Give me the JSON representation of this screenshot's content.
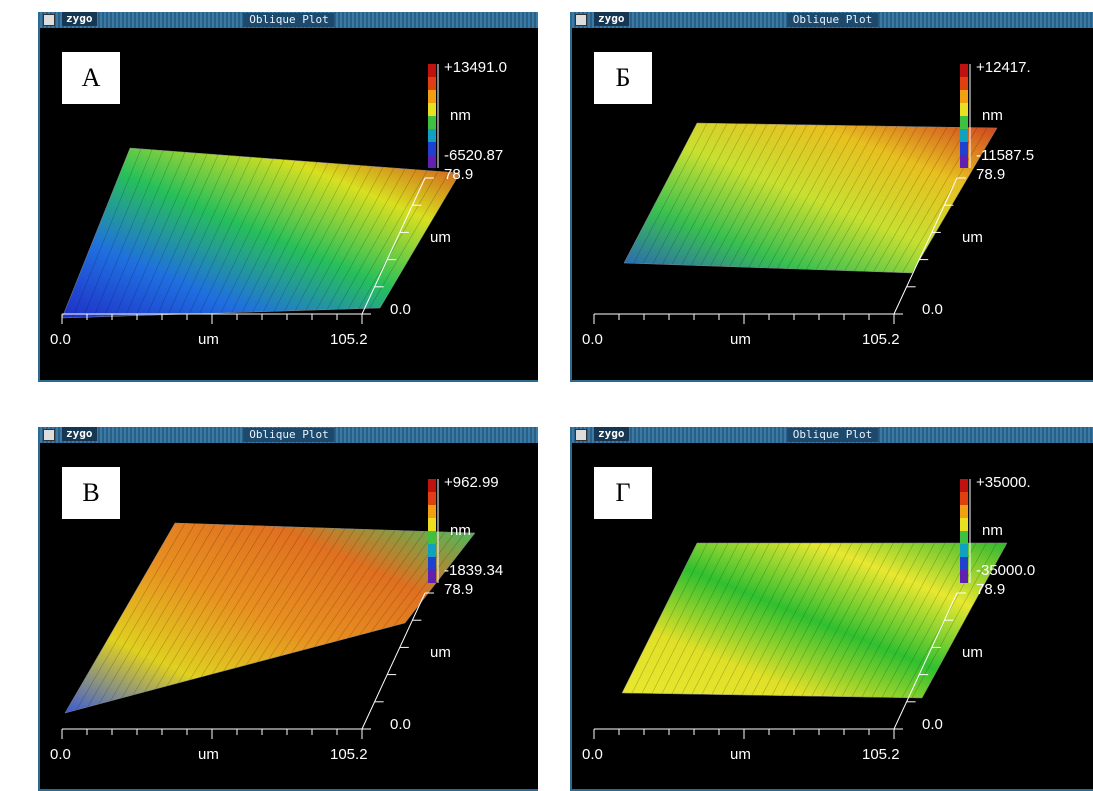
{
  "panels": [
    {
      "window_title": "Oblique Plot",
      "logo": "zygo",
      "letter": "А",
      "scale": {
        "max": "+13491.0",
        "unit": "nm",
        "min": "-6520.87",
        "extent": "78.9"
      },
      "y_axis": {
        "unit": "um",
        "start": "0.0"
      },
      "x_axis": {
        "start": "0.0",
        "unit": "um",
        "end": "105.2"
      }
    },
    {
      "window_title": "Oblique Plot",
      "logo": "zygo",
      "letter": "Б",
      "scale": {
        "max": "+12417.",
        "unit": "nm",
        "min": "-11587.5",
        "extent": "78.9"
      },
      "y_axis": {
        "unit": "um",
        "start": "0.0"
      },
      "x_axis": {
        "start": "0.0",
        "unit": "um",
        "end": "105.2"
      }
    },
    {
      "window_title": "Oblique Plot",
      "logo": "zygo",
      "letter": "В",
      "scale": {
        "max": "+962.99",
        "unit": "nm",
        "min": "-1839.34",
        "extent": "78.9"
      },
      "y_axis": {
        "unit": "um",
        "start": "0.0"
      },
      "x_axis": {
        "start": "0.0",
        "unit": "um",
        "end": "105.2"
      }
    },
    {
      "window_title": "Oblique Plot",
      "logo": "zygo",
      "letter": "Г",
      "scale": {
        "max": "+35000.",
        "unit": "nm",
        "min": "-35000.0",
        "extent": "78.9"
      },
      "y_axis": {
        "unit": "um",
        "start": "0.0"
      },
      "x_axis": {
        "start": "0.0",
        "unit": "um",
        "end": "105.2"
      }
    }
  ]
}
